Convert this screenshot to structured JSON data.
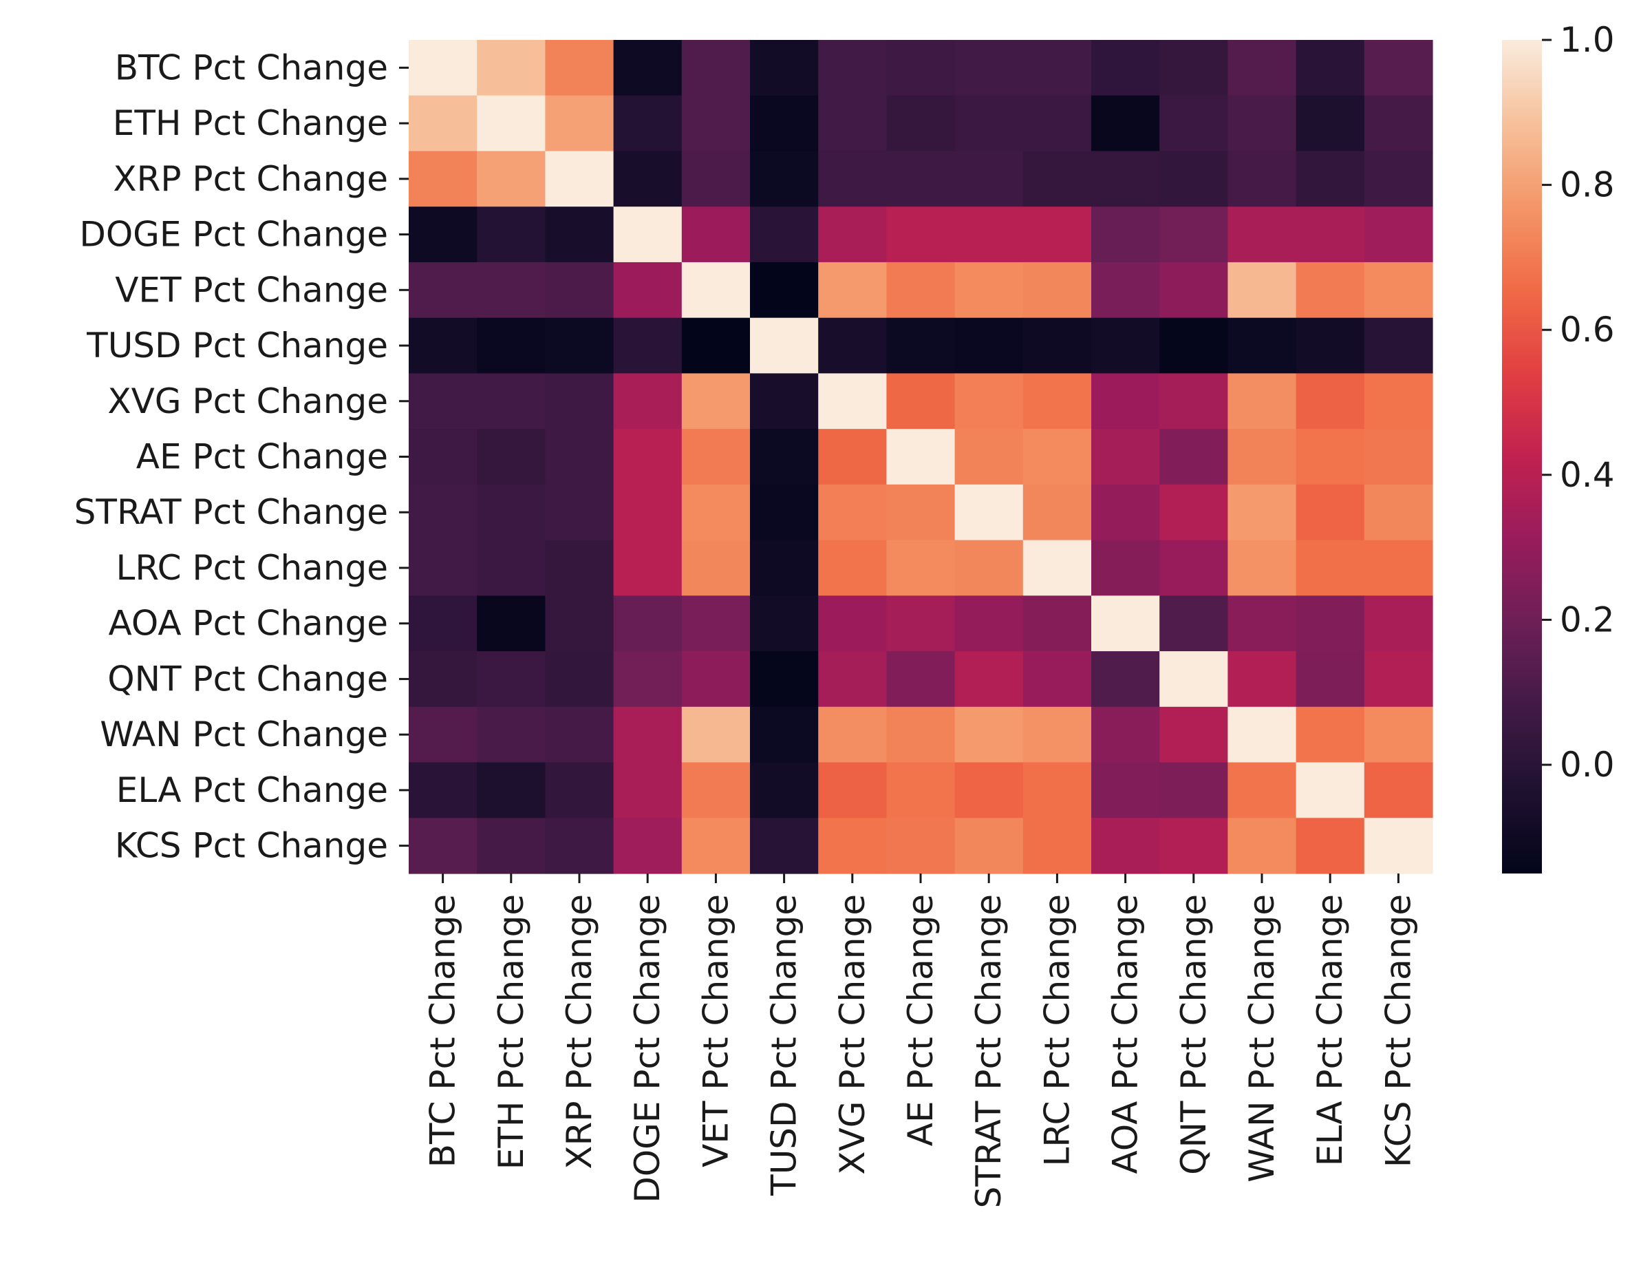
{
  "chart_data": {
    "type": "heatmap",
    "title": "",
    "xlabel": "",
    "ylabel": "",
    "labels": [
      "BTC Pct Change",
      "ETH Pct Change",
      "XRP Pct Change",
      "DOGE Pct Change",
      "VET Pct Change",
      "TUSD Pct Change",
      "XVG Pct Change",
      "AE Pct Change",
      "STRAT Pct Change",
      "LRC Pct Change",
      "AOA Pct Change",
      "QNT Pct Change",
      "WAN Pct Change",
      "ELA Pct Change",
      "KCS Pct Change"
    ],
    "matrix": [
      [
        1.0,
        0.88,
        0.72,
        -0.1,
        0.12,
        -0.08,
        0.08,
        0.07,
        0.08,
        0.08,
        0.02,
        0.04,
        0.13,
        0.0,
        0.14
      ],
      [
        0.88,
        1.0,
        0.8,
        -0.02,
        0.12,
        -0.12,
        0.08,
        0.04,
        0.06,
        0.06,
        -0.13,
        0.06,
        0.1,
        -0.04,
        0.09
      ],
      [
        0.72,
        0.8,
        1.0,
        -0.06,
        0.11,
        -0.11,
        0.07,
        0.07,
        0.07,
        0.04,
        0.04,
        0.03,
        0.09,
        0.03,
        0.07
      ],
      [
        -0.1,
        -0.02,
        -0.06,
        1.0,
        0.32,
        0.0,
        0.36,
        0.4,
        0.4,
        0.4,
        0.18,
        0.21,
        0.36,
        0.36,
        0.33
      ],
      [
        0.12,
        0.12,
        0.11,
        0.32,
        1.0,
        -0.15,
        0.78,
        0.7,
        0.74,
        0.73,
        0.23,
        0.28,
        0.86,
        0.7,
        0.74
      ],
      [
        -0.08,
        -0.12,
        -0.11,
        0.0,
        -0.15,
        1.0,
        -0.06,
        -0.11,
        -0.12,
        -0.1,
        -0.08,
        -0.14,
        -0.11,
        -0.08,
        -0.01
      ],
      [
        0.08,
        0.08,
        0.07,
        0.36,
        0.78,
        -0.06,
        1.0,
        0.65,
        0.71,
        0.68,
        0.32,
        0.35,
        0.75,
        0.63,
        0.68
      ],
      [
        0.07,
        0.04,
        0.07,
        0.4,
        0.7,
        -0.11,
        0.65,
        1.0,
        0.72,
        0.74,
        0.35,
        0.25,
        0.72,
        0.68,
        0.69
      ],
      [
        0.08,
        0.06,
        0.07,
        0.4,
        0.74,
        -0.12,
        0.71,
        0.72,
        1.0,
        0.73,
        0.3,
        0.38,
        0.78,
        0.64,
        0.73
      ],
      [
        0.08,
        0.06,
        0.04,
        0.4,
        0.73,
        -0.1,
        0.68,
        0.74,
        0.73,
        1.0,
        0.26,
        0.31,
        0.76,
        0.67,
        0.67
      ],
      [
        0.02,
        -0.13,
        0.04,
        0.18,
        0.23,
        -0.08,
        0.32,
        0.35,
        0.3,
        0.26,
        1.0,
        0.12,
        0.27,
        0.25,
        0.36
      ],
      [
        0.04,
        0.06,
        0.03,
        0.21,
        0.28,
        -0.14,
        0.35,
        0.25,
        0.38,
        0.31,
        0.12,
        1.0,
        0.38,
        0.24,
        0.38
      ],
      [
        0.13,
        0.1,
        0.09,
        0.36,
        0.86,
        -0.11,
        0.75,
        0.72,
        0.78,
        0.76,
        0.27,
        0.38,
        1.0,
        0.68,
        0.74
      ],
      [
        0.0,
        -0.04,
        0.03,
        0.36,
        0.7,
        -0.08,
        0.63,
        0.68,
        0.64,
        0.67,
        0.25,
        0.24,
        0.68,
        1.0,
        0.64
      ],
      [
        0.14,
        0.09,
        0.07,
        0.33,
        0.74,
        -0.01,
        0.68,
        0.69,
        0.73,
        0.67,
        0.36,
        0.38,
        0.74,
        0.64,
        1.0
      ]
    ],
    "vmin": -0.15,
    "vmax": 1.0,
    "colormap": "rocket",
    "colorbar": {
      "ticks": [
        0.0,
        0.2,
        0.4,
        0.6,
        0.8,
        1.0
      ],
      "tick_labels": [
        "0.0",
        "0.2",
        "0.4",
        "0.6",
        "0.8",
        "1.0"
      ]
    },
    "grid": false,
    "legend": "colorbar-right"
  }
}
